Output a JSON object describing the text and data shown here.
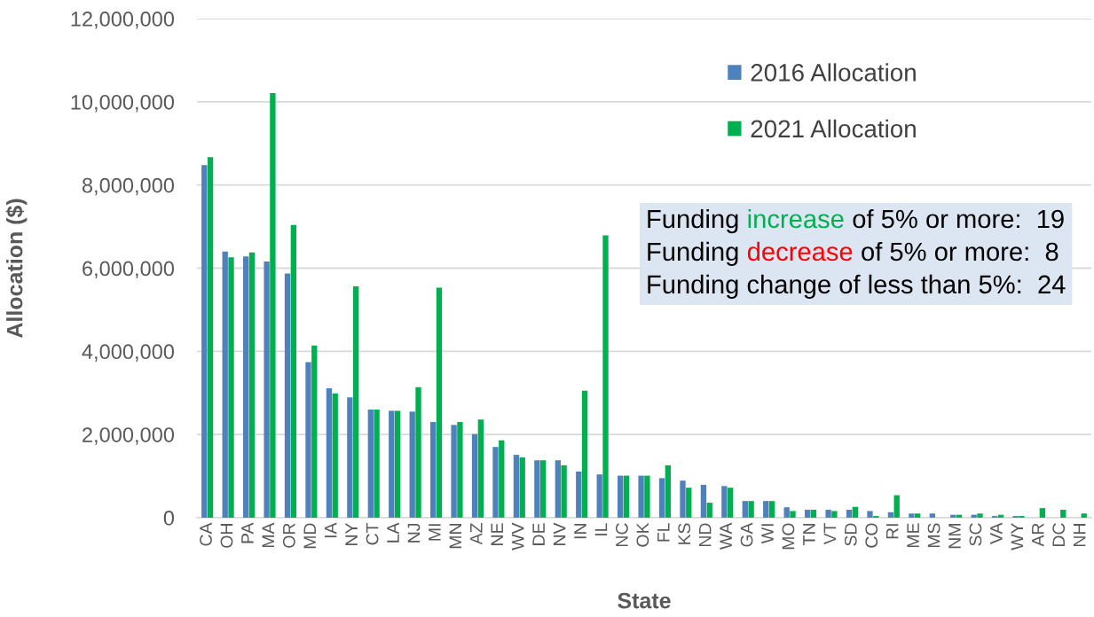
{
  "chart_data": {
    "type": "bar",
    "xlabel": "State",
    "ylabel": "Allocation ($)",
    "categories": [
      "CA",
      "OH",
      "PA",
      "MA",
      "OR",
      "MD",
      "IA",
      "NY",
      "CT",
      "LA",
      "NJ",
      "MI",
      "MN",
      "AZ",
      "NE",
      "WV",
      "DE",
      "NV",
      "IN",
      "IL",
      "NC",
      "OK",
      "FL",
      "KS",
      "ND",
      "WA",
      "GA",
      "WI",
      "MO",
      "TN",
      "VT",
      "SD",
      "CO",
      "RI",
      "ME",
      "MS",
      "NM",
      "SC",
      "VA",
      "WY",
      "AR",
      "DC",
      "NH"
    ],
    "series": [
      {
        "name": "2016 Allocation",
        "color": "#4f81bd",
        "values": [
          8480000,
          6400000,
          6280000,
          6160000,
          5870000,
          3740000,
          3110000,
          2890000,
          2600000,
          2570000,
          2550000,
          2300000,
          2230000,
          2010000,
          1700000,
          1510000,
          1380000,
          1380000,
          1110000,
          1040000,
          1010000,
          1010000,
          950000,
          890000,
          790000,
          760000,
          400000,
          400000,
          250000,
          190000,
          190000,
          190000,
          160000,
          130000,
          100000,
          100000,
          70000,
          70000,
          40000,
          40000,
          0,
          0,
          0
        ]
      },
      {
        "name": "2021 Allocation",
        "color": "#00b050",
        "values": [
          8670000,
          6260000,
          6380000,
          10210000,
          7040000,
          4140000,
          2990000,
          5560000,
          2600000,
          2570000,
          3140000,
          5530000,
          2300000,
          2360000,
          1860000,
          1450000,
          1380000,
          1260000,
          3050000,
          6790000,
          1010000,
          1010000,
          1260000,
          720000,
          360000,
          720000,
          400000,
          400000,
          160000,
          190000,
          160000,
          260000,
          40000,
          540000,
          100000,
          0,
          70000,
          100000,
          70000,
          40000,
          230000,
          190000,
          100000
        ]
      }
    ],
    "ylim": [
      0,
      12000000
    ],
    "yticks": [
      0,
      {
        "value": 2000000,
        "label": "2,000,000"
      },
      {
        "value": 4000000,
        "label": "4,000,000"
      },
      {
        "value": 6000000,
        "label": "6,000,000"
      },
      {
        "value": 8000000,
        "label": "8,000,000"
      },
      {
        "value": 10000000,
        "label": "10,000,000"
      },
      {
        "value": 12000000,
        "label": "12,000,000"
      }
    ],
    "grid": "y",
    "legend": "top right",
    "annotations": [
      "Funding increase of 5% or more:  19",
      "Funding decrease of 5% or more:  8",
      "Funding change of less than 5%:  24"
    ]
  }
}
